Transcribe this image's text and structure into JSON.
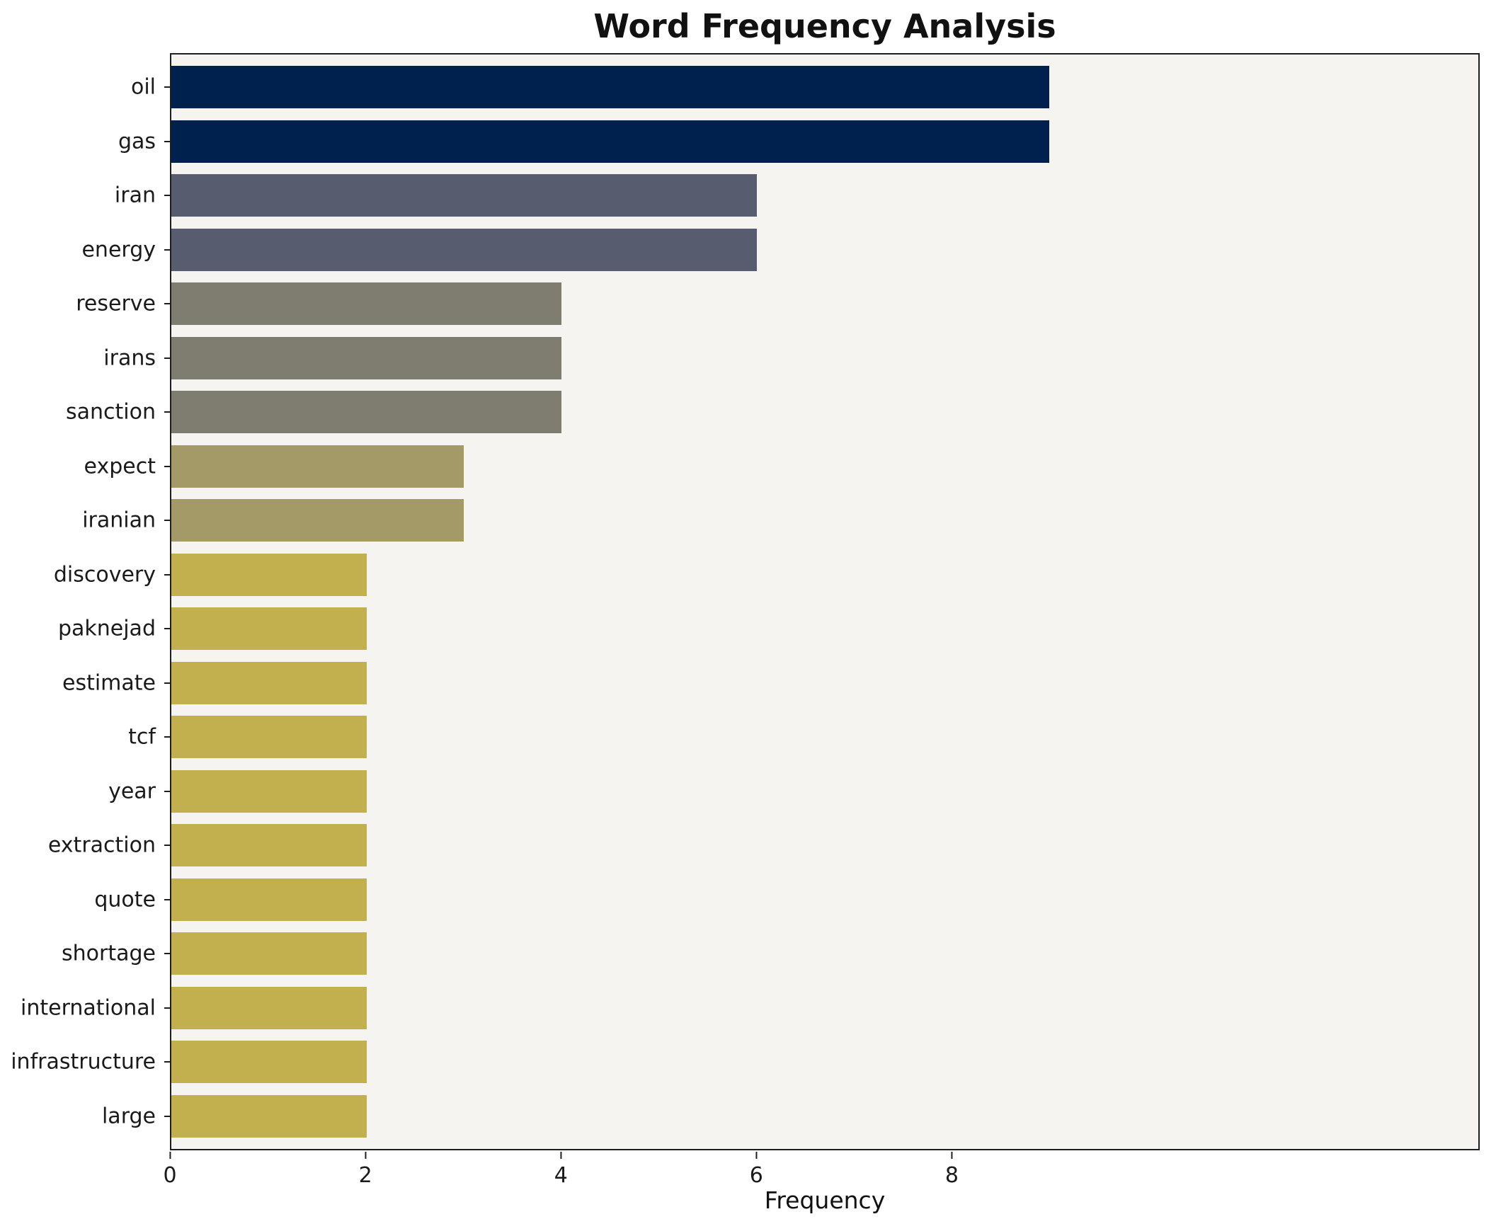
{
  "chart_data": {
    "type": "bar",
    "orientation": "horizontal",
    "title": "Word Frequency Analysis",
    "xlabel": "Frequency",
    "ylabel": "",
    "categories": [
      "oil",
      "gas",
      "iran",
      "energy",
      "reserve",
      "irans",
      "sanction",
      "expect",
      "iranian",
      "discovery",
      "paknejad",
      "estimate",
      "tcf",
      "year",
      "extraction",
      "quote",
      "shortage",
      "international",
      "infrastructure",
      "large"
    ],
    "values": [
      9,
      9,
      6,
      6,
      4,
      4,
      4,
      3,
      3,
      2,
      2,
      2,
      2,
      2,
      2,
      2,
      2,
      2,
      2,
      2
    ],
    "bar_colors": [
      "#00204e",
      "#00204e",
      "#575d6e",
      "#575d6e",
      "#7f7d70",
      "#7f7d70",
      "#7f7d70",
      "#a39a68",
      "#a39a68",
      "#c2b04f",
      "#c2b04f",
      "#c2b04f",
      "#c2b04f",
      "#c2b04f",
      "#c2b04f",
      "#c2b04f",
      "#c2b04f",
      "#c2b04f",
      "#c2b04f",
      "#c2b04f"
    ],
    "xticks": [
      0,
      2,
      4,
      6,
      8
    ],
    "xlim": [
      0,
      13.4
    ],
    "grid": false,
    "legend": "none",
    "plot_background": "#f5f4f0",
    "figure_background": "#ffffff"
  }
}
